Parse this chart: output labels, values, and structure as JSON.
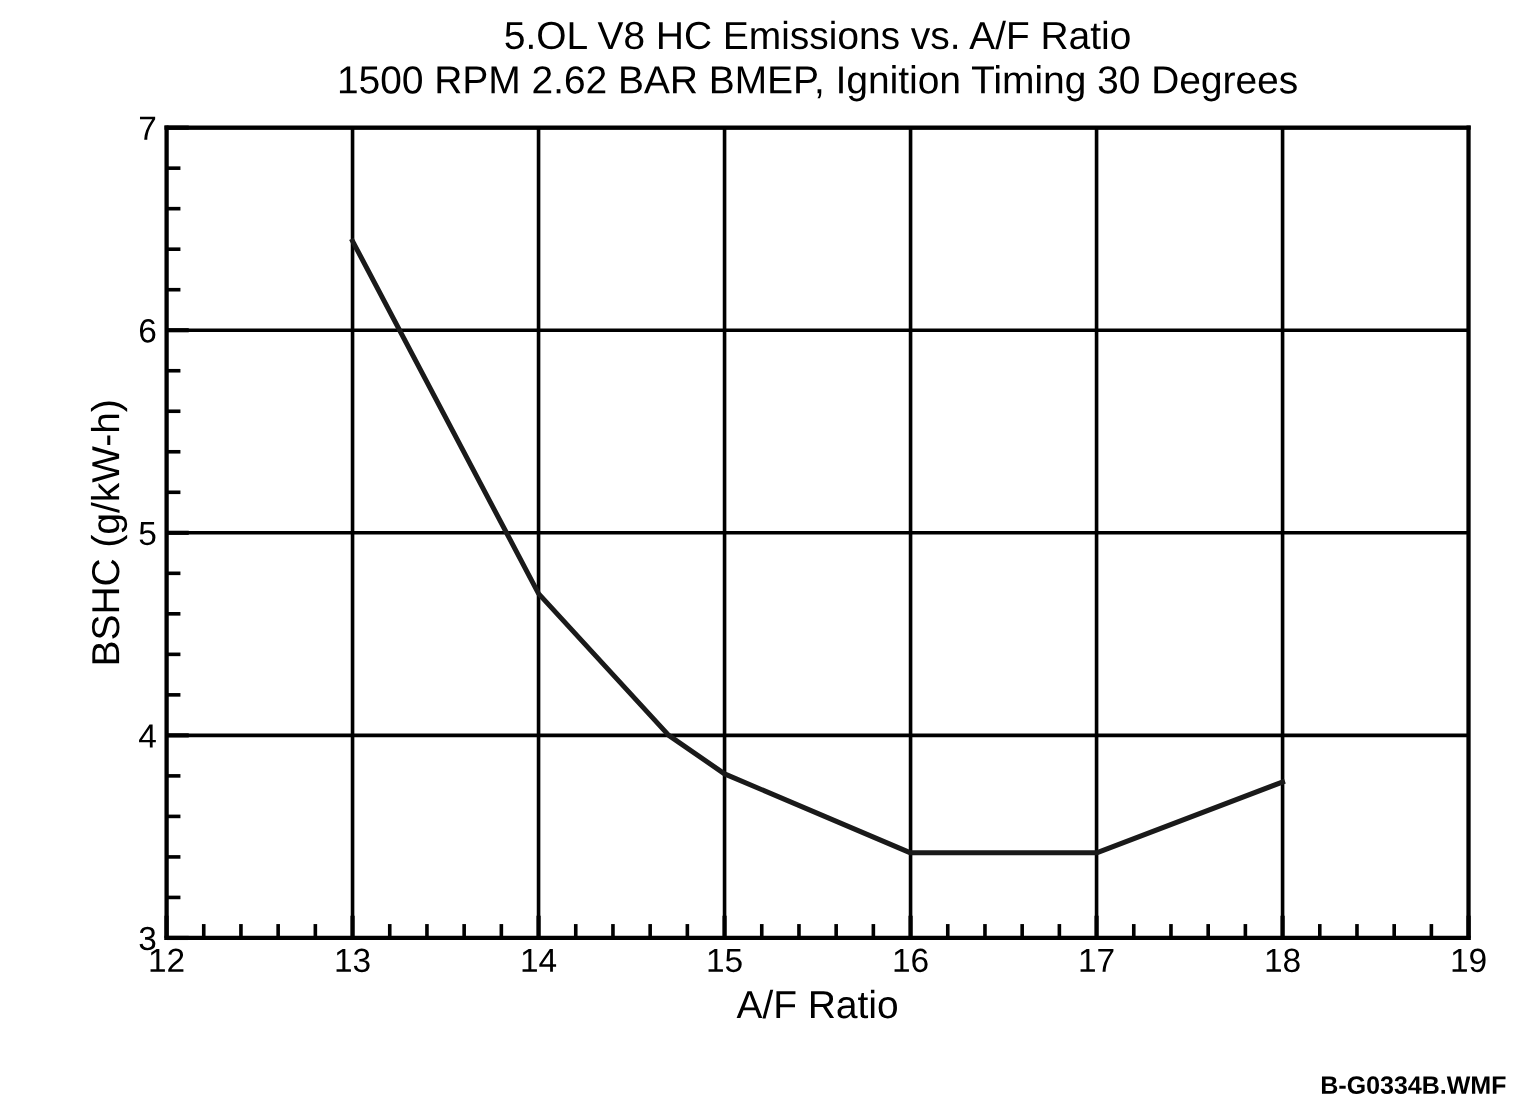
{
  "chart_data": {
    "type": "line",
    "title": "5.OL V8 HC Emissions vs. A/F Ratio",
    "subtitle": "1500 RPM 2.62 BAR BMEP, Ignition Timing 30 Degrees",
    "xlabel": "A/F Ratio",
    "ylabel": "BSHC (g/kW-h)",
    "series": [
      {
        "color": "#1a1a1a",
        "x": [
          13,
          14,
          14.7,
          15,
          16,
          17,
          18
        ],
        "values": [
          6.44,
          4.7,
          4.0,
          3.81,
          3.42,
          3.42,
          3.77
        ]
      }
    ],
    "xlim": [
      12,
      19
    ],
    "xticks": [
      12,
      13,
      14,
      15,
      16,
      17,
      18,
      19
    ],
    "ylim": [
      3,
      7
    ],
    "yticks": [
      3,
      4,
      5,
      6,
      7
    ],
    "grid": true,
    "marker": "none",
    "line_style": "solid",
    "annotations": [
      "B-G0334B.WMF"
    ]
  }
}
